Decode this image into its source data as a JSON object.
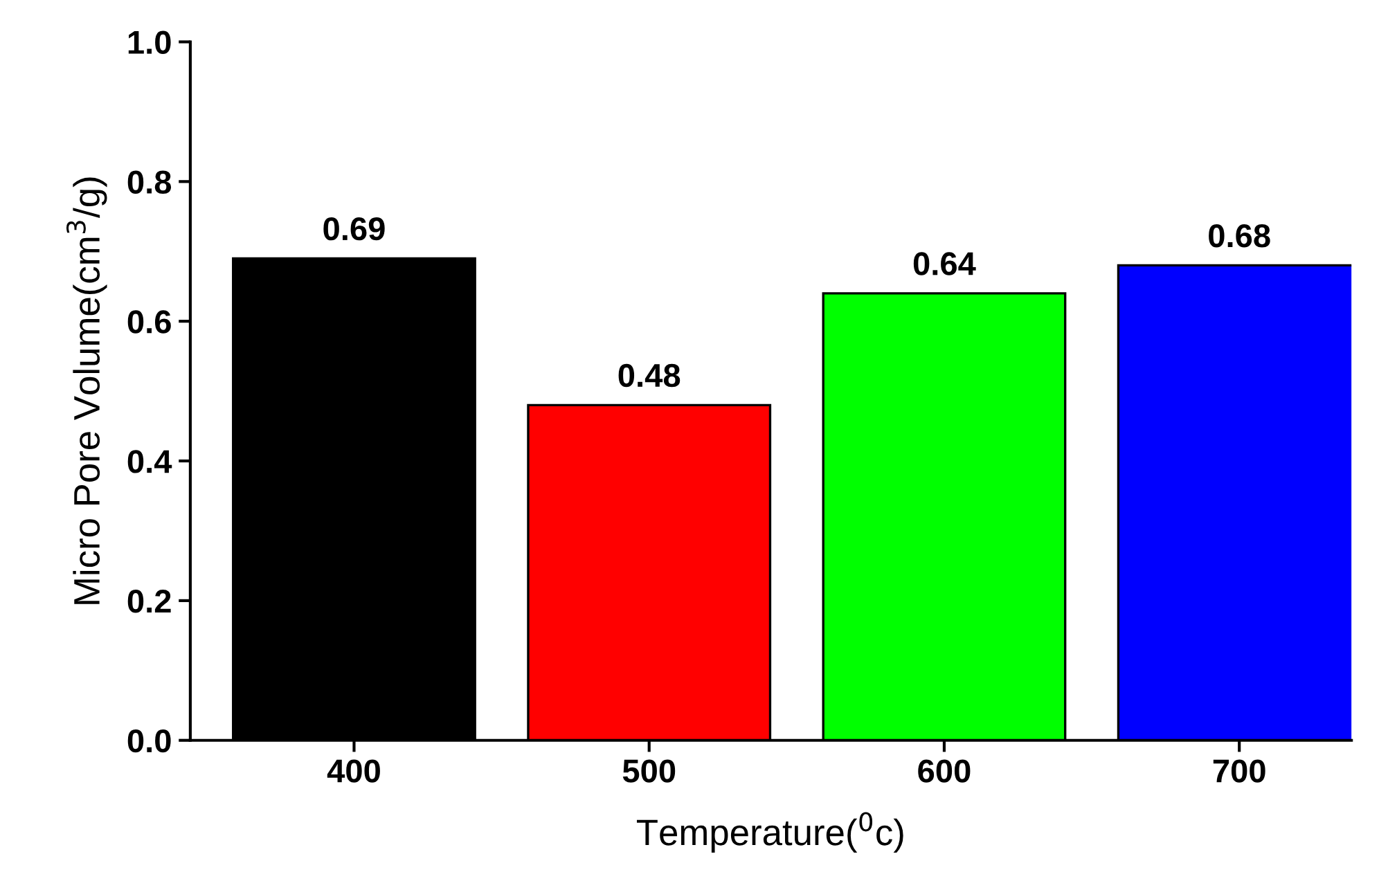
{
  "chart_data": {
    "type": "bar",
    "xlabel": "Temperature($^{0}$c)",
    "ylabel": "Micro Pore Volume(cm$^{3}$/g)",
    "categories": [
      "400",
      "500",
      "600",
      "700"
    ],
    "values": [
      0.69,
      0.48,
      0.64,
      0.68
    ],
    "colors": [
      "#000000",
      "#ff0000",
      "#00ff00",
      "#0000ff"
    ],
    "ylim": [
      0,
      1.0
    ],
    "yticks": [
      {
        "value": 0,
        "label": "0.0"
      },
      {
        "value": 0.2,
        "label": "0.2"
      },
      {
        "value": 0.4,
        "label": "0.4"
      },
      {
        "value": 0.6,
        "label": "0.6"
      },
      {
        "value": 0.8,
        "label": "0.8"
      },
      {
        "value": 1.0,
        "label": "1.0"
      }
    ],
    "data_labels": true,
    "grid": false,
    "legend": false
  }
}
